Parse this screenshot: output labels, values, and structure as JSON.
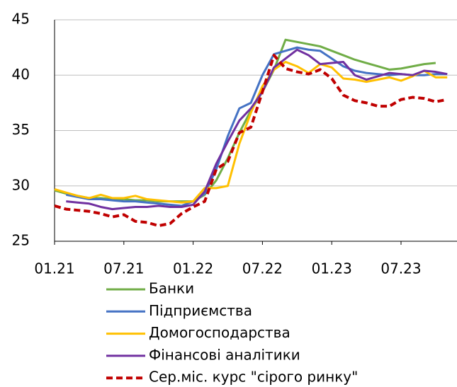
{
  "chart_data": {
    "type": "line",
    "categories": [
      "01.21",
      null,
      null,
      null,
      null,
      null,
      "07.21",
      null,
      null,
      null,
      null,
      null,
      "01.22",
      null,
      null,
      null,
      null,
      null,
      "07.22",
      null,
      null,
      null,
      null,
      null,
      "01.23",
      null,
      null,
      null,
      null,
      null,
      "07.23",
      null,
      null,
      null,
      null
    ],
    "ylim": [
      25,
      45
    ],
    "yticks": [
      25,
      30,
      35,
      40,
      45
    ],
    "grid": true,
    "series": [
      {
        "name": "Банки",
        "color": "#70ad47",
        "dash": false,
        "values": [
          29.6,
          29.3,
          29.1,
          28.9,
          28.9,
          28.8,
          28.8,
          28.7,
          28.7,
          28.6,
          28.6,
          28.6,
          28.6,
          29.2,
          30.5,
          32.5,
          34.8,
          36.8,
          38.5,
          40.5,
          43.2,
          43.0,
          42.8,
          42.6,
          42.2,
          41.8,
          41.4,
          41.1,
          40.8,
          40.5,
          40.6,
          40.8,
          41.0,
          41.1,
          null
        ]
      },
      {
        "name": "Підприємства",
        "color": "#4472c4",
        "dash": false,
        "values": [
          null,
          29.2,
          29.0,
          28.8,
          28.8,
          28.7,
          28.6,
          28.6,
          28.5,
          28.4,
          28.3,
          28.2,
          28.6,
          29.3,
          31.5,
          34.5,
          37.0,
          37.5,
          40.0,
          41.9,
          42.2,
          42.5,
          42.3,
          42.2,
          41.5,
          40.8,
          40.4,
          40.2,
          40.1,
          40.0,
          40.1,
          40.0,
          40.0,
          40.1,
          40.1
        ]
      },
      {
        "name": "Домогосподарства",
        "color": "#ffc000",
        "dash": false,
        "values": [
          29.7,
          29.4,
          29.1,
          28.9,
          29.2,
          28.9,
          28.9,
          29.1,
          28.8,
          28.7,
          28.6,
          28.5,
          28.6,
          29.8,
          29.8,
          30.0,
          33.8,
          36.6,
          39.0,
          40.5,
          41.2,
          40.8,
          40.2,
          41.0,
          40.7,
          39.7,
          39.6,
          39.4,
          39.6,
          39.8,
          39.5,
          39.9,
          40.4,
          39.8,
          39.8
        ]
      },
      {
        "name": "Фінансові аналітики",
        "color": "#7030a0",
        "dash": false,
        "values": [
          null,
          28.6,
          28.5,
          28.4,
          28.1,
          27.9,
          28.0,
          28.1,
          28.1,
          28.2,
          28.1,
          28.1,
          28.3,
          29.5,
          32.0,
          34.0,
          35.9,
          37.0,
          38.5,
          40.7,
          41.5,
          42.3,
          41.8,
          41.0,
          41.1,
          41.2,
          40.0,
          39.6,
          39.9,
          40.2,
          40.1,
          40.0,
          40.4,
          40.3,
          40.1
        ]
      },
      {
        "name": "Сер.міс. курс \"сірого ринку\"",
        "color": "#c00000",
        "dash": true,
        "values": [
          28.2,
          27.9,
          27.8,
          27.7,
          27.5,
          27.2,
          27.4,
          26.8,
          26.7,
          26.4,
          26.6,
          27.5,
          28.1,
          28.6,
          31.5,
          32.2,
          34.8,
          35.3,
          38.5,
          41.8,
          40.6,
          40.3,
          40.1,
          40.5,
          39.7,
          38.2,
          37.7,
          37.5,
          37.2,
          37.2,
          37.8,
          38.0,
          37.9,
          37.6,
          37.8
        ]
      }
    ]
  }
}
